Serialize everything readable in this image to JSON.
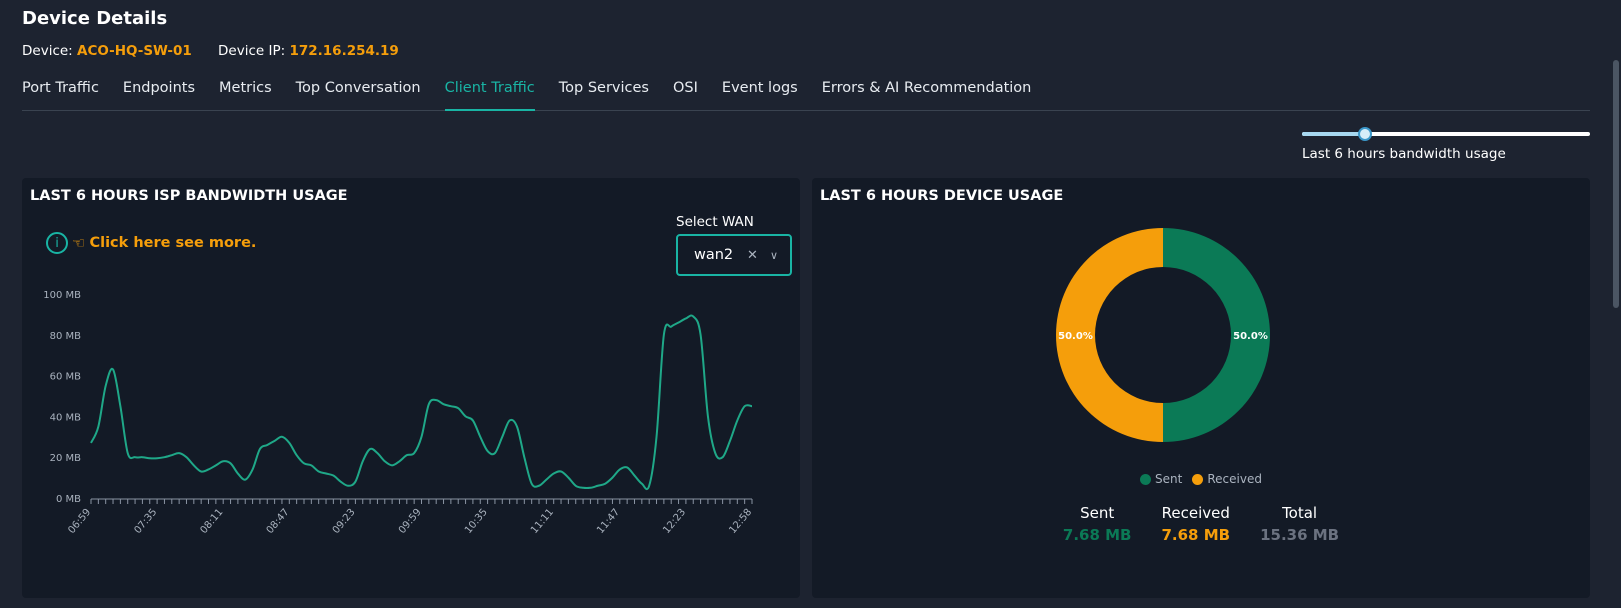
{
  "page": {
    "title": "Device Details",
    "device_label": "Device:",
    "device_name": "ACO-HQ-SW-01",
    "ip_label": "Device IP:",
    "ip_value": "172.16.254.19"
  },
  "tabs": [
    {
      "label": "Port Traffic"
    },
    {
      "label": "Endpoints"
    },
    {
      "label": "Metrics"
    },
    {
      "label": "Top Conversation"
    },
    {
      "label": "Client Traffic",
      "active": true
    },
    {
      "label": "Top Services"
    },
    {
      "label": "OSI"
    },
    {
      "label": "Event logs"
    },
    {
      "label": "Errors & AI Recommendation"
    }
  ],
  "range_slider": {
    "label": "Last 6 hours bandwidth usage",
    "value_fraction": 0.22
  },
  "isp_card": {
    "title": "LAST 6 HOURS ISP BANDWIDTH USAGE",
    "info_text": "Click here see more.",
    "info_icon": "info-icon",
    "hand_icon": "pointing-hand-icon",
    "wan_label": "Select WAN",
    "wan_value": "wan2",
    "clear_icon": "close-icon",
    "chevron_icon": "chevron-down-icon"
  },
  "device_card": {
    "title": "LAST 6 HOURS DEVICE USAGE",
    "legend": [
      {
        "label": "Sent",
        "color": "#0b7a56"
      },
      {
        "label": "Received",
        "color": "#f59e0b"
      }
    ],
    "stats": [
      {
        "label": "Sent",
        "value": "7.68 MB",
        "color": "#0b7a56"
      },
      {
        "label": "Received",
        "value": "7.68 MB",
        "color": "#f59e0b"
      },
      {
        "label": "Total",
        "value": "15.36 MB",
        "color": "#6b7280"
      }
    ]
  },
  "chart_data": [
    {
      "type": "line",
      "title": "LAST 6 HOURS ISP BANDWIDTH USAGE",
      "xlabel": "",
      "ylabel": "",
      "ylim": [
        0,
        100
      ],
      "y_ticks": [
        "0 MB",
        "20 MB",
        "40 MB",
        "60 MB",
        "80 MB",
        "100 MB"
      ],
      "x_ticks": [
        "06:59",
        "07:35",
        "08:11",
        "08:47",
        "09:23",
        "09:59",
        "10:35",
        "11:11",
        "11:47",
        "12:23",
        "12:58"
      ],
      "grid": false,
      "color": "#1fa888",
      "x": [
        "06:59",
        "07:03",
        "07:07",
        "07:11",
        "07:15",
        "07:19",
        "07:23",
        "07:27",
        "07:31",
        "07:35",
        "07:39",
        "07:43",
        "07:47",
        "07:51",
        "07:55",
        "07:59",
        "08:03",
        "08:07",
        "08:11",
        "08:15",
        "08:19",
        "08:23",
        "08:27",
        "08:31",
        "08:35",
        "08:39",
        "08:43",
        "08:47",
        "08:51",
        "08:55",
        "08:59",
        "09:03",
        "09:07",
        "09:11",
        "09:15",
        "09:19",
        "09:23",
        "09:27",
        "09:31",
        "09:35",
        "09:39",
        "09:43",
        "09:47",
        "09:51",
        "09:55",
        "09:59",
        "10:03",
        "10:07",
        "10:11",
        "10:15",
        "10:19",
        "10:23",
        "10:27",
        "10:31",
        "10:35",
        "10:39",
        "10:43",
        "10:47",
        "10:51",
        "10:55",
        "10:59",
        "11:03",
        "11:07",
        "11:11",
        "11:15",
        "11:19",
        "11:23",
        "11:27",
        "11:31",
        "11:35",
        "11:39",
        "11:43",
        "11:47",
        "11:51",
        "11:55",
        "11:59",
        "12:03",
        "12:07",
        "12:11",
        "12:15",
        "12:19",
        "12:23",
        "12:27",
        "12:31",
        "12:35",
        "12:39",
        "12:43",
        "12:47",
        "12:51",
        "12:55",
        "12:58"
      ],
      "values": [
        27,
        35,
        55,
        63,
        45,
        22,
        20,
        20,
        19.5,
        19.5,
        20,
        21,
        22,
        20,
        16,
        13,
        14,
        16,
        18,
        17,
        12,
        9,
        14,
        24,
        26,
        28,
        30,
        27,
        21,
        17,
        16,
        13,
        12,
        11,
        8,
        6,
        8,
        18,
        24,
        22,
        18,
        16,
        18,
        21,
        22,
        30,
        46,
        48,
        46,
        45,
        44,
        40,
        38,
        30,
        23,
        22,
        30,
        38,
        35,
        20,
        7,
        6,
        9,
        12,
        13,
        10,
        6,
        5,
        5,
        6,
        7,
        10,
        14,
        15,
        11,
        7,
        6,
        30,
        80,
        84,
        86,
        88,
        89,
        80,
        40,
        22,
        20,
        28,
        38,
        45,
        45
      ]
    },
    {
      "type": "pie",
      "title": "LAST 6 HOURS DEVICE USAGE",
      "donut": true,
      "labels": [
        "Sent",
        "Received"
      ],
      "values": [
        50.0,
        50.0
      ],
      "value_labels": [
        "50.0%",
        "50.0%"
      ],
      "colors": [
        "#0b7a56",
        "#f59e0b"
      ],
      "legend_position": "bottom"
    }
  ]
}
